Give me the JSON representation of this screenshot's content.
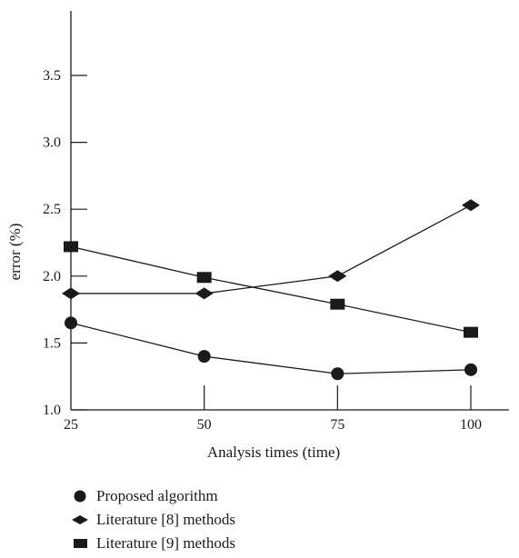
{
  "chart_data": {
    "type": "line",
    "title": "",
    "xlabel": "Analysis times (time)",
    "ylabel": "error (%)",
    "x": [
      25,
      50,
      75,
      100
    ],
    "x_tick_labels": [
      "25",
      "50",
      "75",
      "100"
    ],
    "xlim": [
      25,
      100
    ],
    "ylim": [
      1.0,
      4.0
    ],
    "y_ticks": [
      1.0,
      1.5,
      2.0,
      2.5,
      3.0,
      3.5
    ],
    "y_tick_labels": [
      "1.0",
      "1.5",
      "2.0",
      "2.5",
      "3.0",
      "3.5"
    ],
    "grid": false,
    "legend_position": "bottom-left",
    "series": [
      {
        "name": "Proposed algorithm",
        "marker": "circle",
        "values": [
          1.65,
          1.4,
          1.27,
          1.3
        ]
      },
      {
        "name": "Literature [8] methods",
        "marker": "diamond",
        "values": [
          1.87,
          1.87,
          2.0,
          2.53
        ]
      },
      {
        "name": "Literature [9] methods",
        "marker": "square",
        "values": [
          2.22,
          1.99,
          1.79,
          1.58
        ]
      }
    ],
    "colors": {
      "line": "#1a1a1a",
      "marker": "#1a1a1a"
    }
  }
}
